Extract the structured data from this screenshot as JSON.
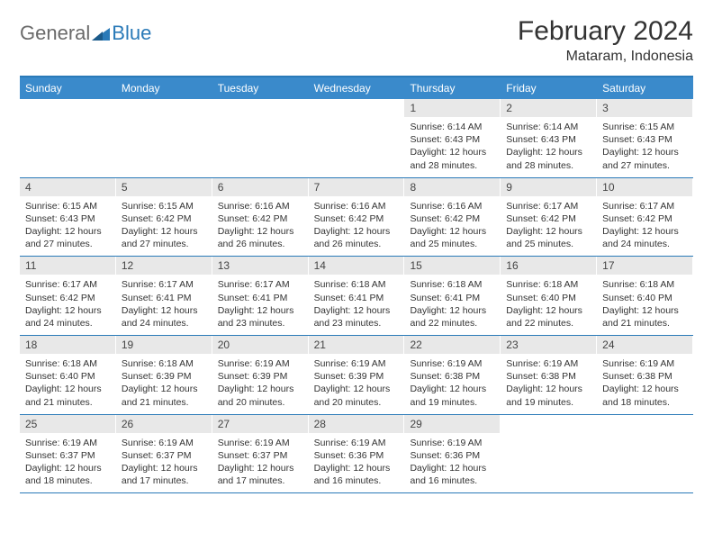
{
  "logo": {
    "text1": "General",
    "text2": "Blue"
  },
  "title": "February 2024",
  "location": "Mataram, Indonesia",
  "colors": {
    "accent": "#3a8acb",
    "border": "#2a7ab8",
    "daynum_bg": "#e8e8e8",
    "text": "#333333",
    "logo_gray": "#6a6a6a"
  },
  "weekdays": [
    "Sunday",
    "Monday",
    "Tuesday",
    "Wednesday",
    "Thursday",
    "Friday",
    "Saturday"
  ],
  "weeks": [
    [
      {
        "n": "",
        "sunrise": "",
        "sunset": "",
        "daylight": ""
      },
      {
        "n": "",
        "sunrise": "",
        "sunset": "",
        "daylight": ""
      },
      {
        "n": "",
        "sunrise": "",
        "sunset": "",
        "daylight": ""
      },
      {
        "n": "",
        "sunrise": "",
        "sunset": "",
        "daylight": ""
      },
      {
        "n": "1",
        "sunrise": "Sunrise: 6:14 AM",
        "sunset": "Sunset: 6:43 PM",
        "daylight": "Daylight: 12 hours and 28 minutes."
      },
      {
        "n": "2",
        "sunrise": "Sunrise: 6:14 AM",
        "sunset": "Sunset: 6:43 PM",
        "daylight": "Daylight: 12 hours and 28 minutes."
      },
      {
        "n": "3",
        "sunrise": "Sunrise: 6:15 AM",
        "sunset": "Sunset: 6:43 PM",
        "daylight": "Daylight: 12 hours and 27 minutes."
      }
    ],
    [
      {
        "n": "4",
        "sunrise": "Sunrise: 6:15 AM",
        "sunset": "Sunset: 6:43 PM",
        "daylight": "Daylight: 12 hours and 27 minutes."
      },
      {
        "n": "5",
        "sunrise": "Sunrise: 6:15 AM",
        "sunset": "Sunset: 6:42 PM",
        "daylight": "Daylight: 12 hours and 27 minutes."
      },
      {
        "n": "6",
        "sunrise": "Sunrise: 6:16 AM",
        "sunset": "Sunset: 6:42 PM",
        "daylight": "Daylight: 12 hours and 26 minutes."
      },
      {
        "n": "7",
        "sunrise": "Sunrise: 6:16 AM",
        "sunset": "Sunset: 6:42 PM",
        "daylight": "Daylight: 12 hours and 26 minutes."
      },
      {
        "n": "8",
        "sunrise": "Sunrise: 6:16 AM",
        "sunset": "Sunset: 6:42 PM",
        "daylight": "Daylight: 12 hours and 25 minutes."
      },
      {
        "n": "9",
        "sunrise": "Sunrise: 6:17 AM",
        "sunset": "Sunset: 6:42 PM",
        "daylight": "Daylight: 12 hours and 25 minutes."
      },
      {
        "n": "10",
        "sunrise": "Sunrise: 6:17 AM",
        "sunset": "Sunset: 6:42 PM",
        "daylight": "Daylight: 12 hours and 24 minutes."
      }
    ],
    [
      {
        "n": "11",
        "sunrise": "Sunrise: 6:17 AM",
        "sunset": "Sunset: 6:42 PM",
        "daylight": "Daylight: 12 hours and 24 minutes."
      },
      {
        "n": "12",
        "sunrise": "Sunrise: 6:17 AM",
        "sunset": "Sunset: 6:41 PM",
        "daylight": "Daylight: 12 hours and 24 minutes."
      },
      {
        "n": "13",
        "sunrise": "Sunrise: 6:17 AM",
        "sunset": "Sunset: 6:41 PM",
        "daylight": "Daylight: 12 hours and 23 minutes."
      },
      {
        "n": "14",
        "sunrise": "Sunrise: 6:18 AM",
        "sunset": "Sunset: 6:41 PM",
        "daylight": "Daylight: 12 hours and 23 minutes."
      },
      {
        "n": "15",
        "sunrise": "Sunrise: 6:18 AM",
        "sunset": "Sunset: 6:41 PM",
        "daylight": "Daylight: 12 hours and 22 minutes."
      },
      {
        "n": "16",
        "sunrise": "Sunrise: 6:18 AM",
        "sunset": "Sunset: 6:40 PM",
        "daylight": "Daylight: 12 hours and 22 minutes."
      },
      {
        "n": "17",
        "sunrise": "Sunrise: 6:18 AM",
        "sunset": "Sunset: 6:40 PM",
        "daylight": "Daylight: 12 hours and 21 minutes."
      }
    ],
    [
      {
        "n": "18",
        "sunrise": "Sunrise: 6:18 AM",
        "sunset": "Sunset: 6:40 PM",
        "daylight": "Daylight: 12 hours and 21 minutes."
      },
      {
        "n": "19",
        "sunrise": "Sunrise: 6:18 AM",
        "sunset": "Sunset: 6:39 PM",
        "daylight": "Daylight: 12 hours and 21 minutes."
      },
      {
        "n": "20",
        "sunrise": "Sunrise: 6:19 AM",
        "sunset": "Sunset: 6:39 PM",
        "daylight": "Daylight: 12 hours and 20 minutes."
      },
      {
        "n": "21",
        "sunrise": "Sunrise: 6:19 AM",
        "sunset": "Sunset: 6:39 PM",
        "daylight": "Daylight: 12 hours and 20 minutes."
      },
      {
        "n": "22",
        "sunrise": "Sunrise: 6:19 AM",
        "sunset": "Sunset: 6:38 PM",
        "daylight": "Daylight: 12 hours and 19 minutes."
      },
      {
        "n": "23",
        "sunrise": "Sunrise: 6:19 AM",
        "sunset": "Sunset: 6:38 PM",
        "daylight": "Daylight: 12 hours and 19 minutes."
      },
      {
        "n": "24",
        "sunrise": "Sunrise: 6:19 AM",
        "sunset": "Sunset: 6:38 PM",
        "daylight": "Daylight: 12 hours and 18 minutes."
      }
    ],
    [
      {
        "n": "25",
        "sunrise": "Sunrise: 6:19 AM",
        "sunset": "Sunset: 6:37 PM",
        "daylight": "Daylight: 12 hours and 18 minutes."
      },
      {
        "n": "26",
        "sunrise": "Sunrise: 6:19 AM",
        "sunset": "Sunset: 6:37 PM",
        "daylight": "Daylight: 12 hours and 17 minutes."
      },
      {
        "n": "27",
        "sunrise": "Sunrise: 6:19 AM",
        "sunset": "Sunset: 6:37 PM",
        "daylight": "Daylight: 12 hours and 17 minutes."
      },
      {
        "n": "28",
        "sunrise": "Sunrise: 6:19 AM",
        "sunset": "Sunset: 6:36 PM",
        "daylight": "Daylight: 12 hours and 16 minutes."
      },
      {
        "n": "29",
        "sunrise": "Sunrise: 6:19 AM",
        "sunset": "Sunset: 6:36 PM",
        "daylight": "Daylight: 12 hours and 16 minutes."
      },
      {
        "n": "",
        "sunrise": "",
        "sunset": "",
        "daylight": ""
      },
      {
        "n": "",
        "sunrise": "",
        "sunset": "",
        "daylight": ""
      }
    ]
  ]
}
